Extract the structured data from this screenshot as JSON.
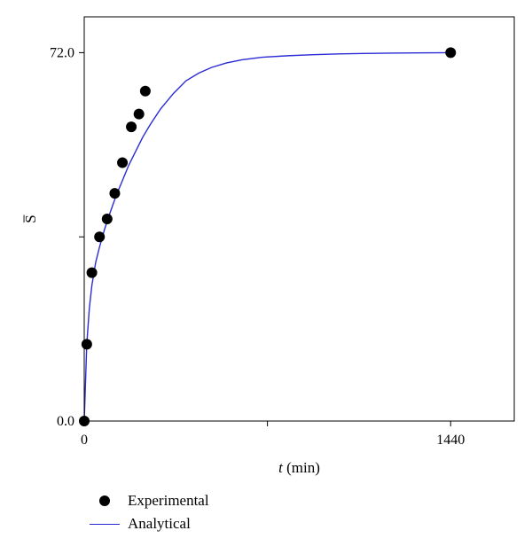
{
  "chart_data": {
    "type": "scatter",
    "title": "",
    "xlabel_italic": "t",
    "xlabel_rest": " (min)",
    "ylabel": "S̅",
    "xlim": [
      0,
      1690
    ],
    "ylim": [
      0,
      79
    ],
    "x_ticks": [
      0,
      720,
      1440
    ],
    "x_tick_labels": [
      "0",
      "",
      "1440"
    ],
    "y_ticks": [
      0,
      36,
      72
    ],
    "y_tick_labels": [
      "0.0",
      "",
      "72.0"
    ],
    "grid": false,
    "legend_position": "bottom-left-outside",
    "series": [
      {
        "name": "Experimental",
        "kind": "scatter",
        "color": "#000000",
        "x": [
          0,
          10,
          30,
          60,
          90,
          120,
          150,
          185,
          215,
          240
        ],
        "y": [
          0,
          15,
          29,
          36,
          39.5,
          44.5,
          50.5,
          57.5,
          60,
          64.5
        ]
      },
      {
        "name": "Analytical",
        "kind": "line",
        "color": "#2b2bd6",
        "x": [
          0,
          10,
          20,
          30,
          45,
          60,
          80,
          100,
          125,
          150,
          175,
          200,
          230,
          260,
          300,
          350,
          400,
          450,
          500,
          560,
          620,
          700,
          800,
          900,
          1000,
          1100,
          1200,
          1300,
          1440
        ],
        "y": [
          0,
          15,
          22,
          26.5,
          31,
          34,
          37.5,
          40.5,
          44,
          47,
          50,
          52.5,
          55.5,
          58,
          61,
          64,
          66.5,
          68,
          69.1,
          70,
          70.6,
          71.1,
          71.4,
          71.6,
          71.75,
          71.85,
          71.9,
          71.95,
          72
        ]
      }
    ]
  },
  "legend": {
    "experimental_label": "Experimental",
    "analytical_label": "Analytical"
  }
}
